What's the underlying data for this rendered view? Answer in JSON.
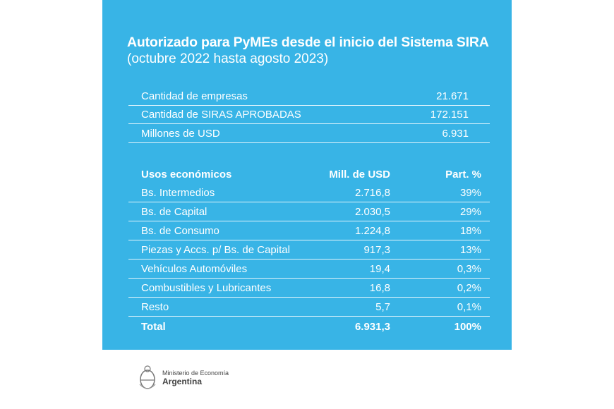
{
  "header": {
    "title": "Autorizado para PyMEs desde el inicio del Sistema SIRA",
    "subtitle": "(octubre 2022 hasta agosto 2023)"
  },
  "summary": [
    {
      "label": "Cantidad de empresas",
      "value": "21.671"
    },
    {
      "label": "Cantidad de SIRAS APROBADAS",
      "value": "172.151"
    },
    {
      "label": "Millones de USD",
      "value": "6.931"
    }
  ],
  "usos": {
    "headers": [
      "Usos económicos",
      "Mill. de USD",
      "Part. %"
    ],
    "rows": [
      {
        "label": "Bs. Intermedios",
        "usd": "2.716,8",
        "part": "39%"
      },
      {
        "label": "Bs. de Capital",
        "usd": "2.030,5",
        "part": "29%"
      },
      {
        "label": "Bs. de Consumo",
        "usd": "1.224,8",
        "part": "18%"
      },
      {
        "label": "Piezas y Accs. p/ Bs. de Capital",
        "usd": "917,3",
        "part": "13%"
      },
      {
        "label": "Vehículos Automóviles",
        "usd": "19,4",
        "part": "0,3%"
      },
      {
        "label": "Combustibles y Lubricantes",
        "usd": "16,8",
        "part": "0,2%"
      },
      {
        "label": "Resto",
        "usd": "5,7",
        "part": "0,1%"
      }
    ],
    "total": {
      "label": "Total",
      "usd": "6.931,3",
      "part": "100%"
    }
  },
  "footer": {
    "line1": "Ministerio de Economía",
    "line2": "Argentina"
  },
  "colors": {
    "panel": "#38b4e6"
  }
}
